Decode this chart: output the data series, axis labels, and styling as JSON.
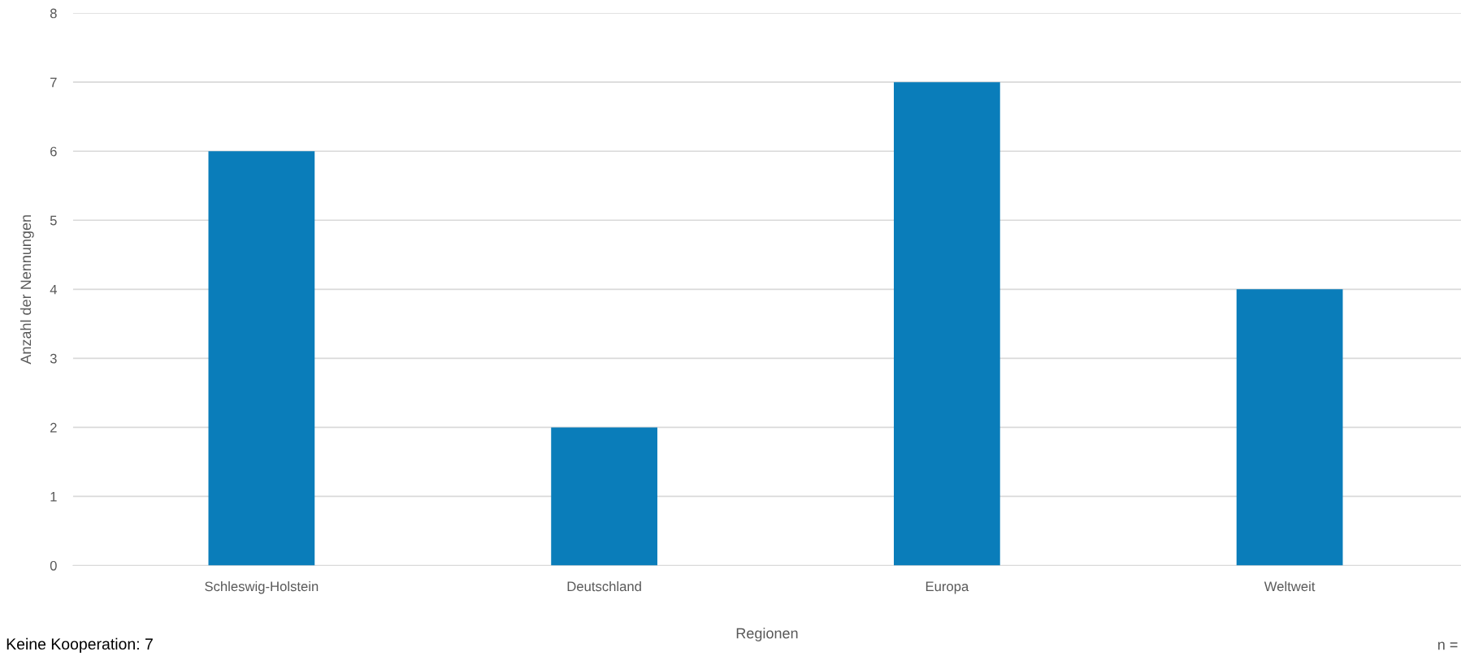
{
  "chart_data": {
    "type": "bar",
    "xlabel": "Regionen",
    "ylabel": "Anzahl der Nennungen",
    "categories": [
      "Schleswig-Holstein",
      "Deutschland",
      "Europa",
      "Weltweit"
    ],
    "values": [
      6,
      2,
      7,
      4
    ],
    "color": "#0a7dba",
    "ylim": [
      0,
      8
    ],
    "yticks": [
      0,
      1,
      2,
      3,
      4,
      5,
      6,
      7,
      8
    ],
    "grid": "y",
    "legend": false,
    "annotations": [
      "Keine Kooperation: 7",
      "n ="
    ]
  }
}
